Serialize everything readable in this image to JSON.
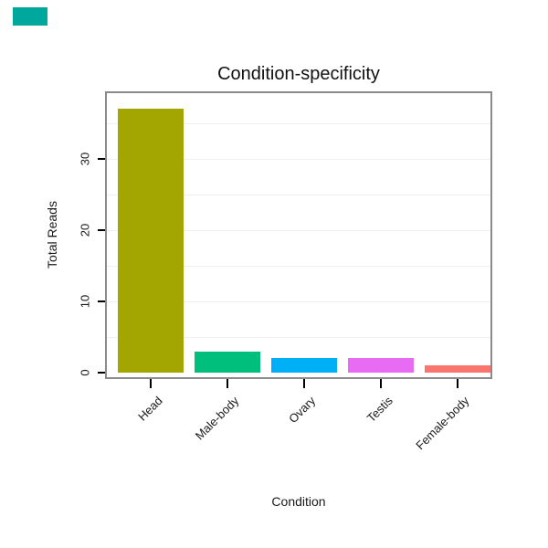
{
  "decor": {
    "corner_swatch_color": "#00a79c"
  },
  "chart_data": {
    "type": "bar",
    "title": "Condition-specificity",
    "xlabel": "Condition",
    "ylabel": "Total Reads",
    "categories": [
      "Head",
      "Male-body",
      "Ovary",
      "Testis",
      "Female-body"
    ],
    "values": [
      37,
      3,
      2,
      2,
      1
    ],
    "bar_colors": [
      "#a3a500",
      "#00bf7d",
      "#00b0f6",
      "#e76bf3",
      "#f8766d"
    ],
    "yticks": [
      0,
      10,
      20,
      30
    ],
    "ylim": [
      0,
      39
    ],
    "grid": "faint horizontal gridlines",
    "legend": "none",
    "panel_border_color": "#8a8a8a"
  }
}
